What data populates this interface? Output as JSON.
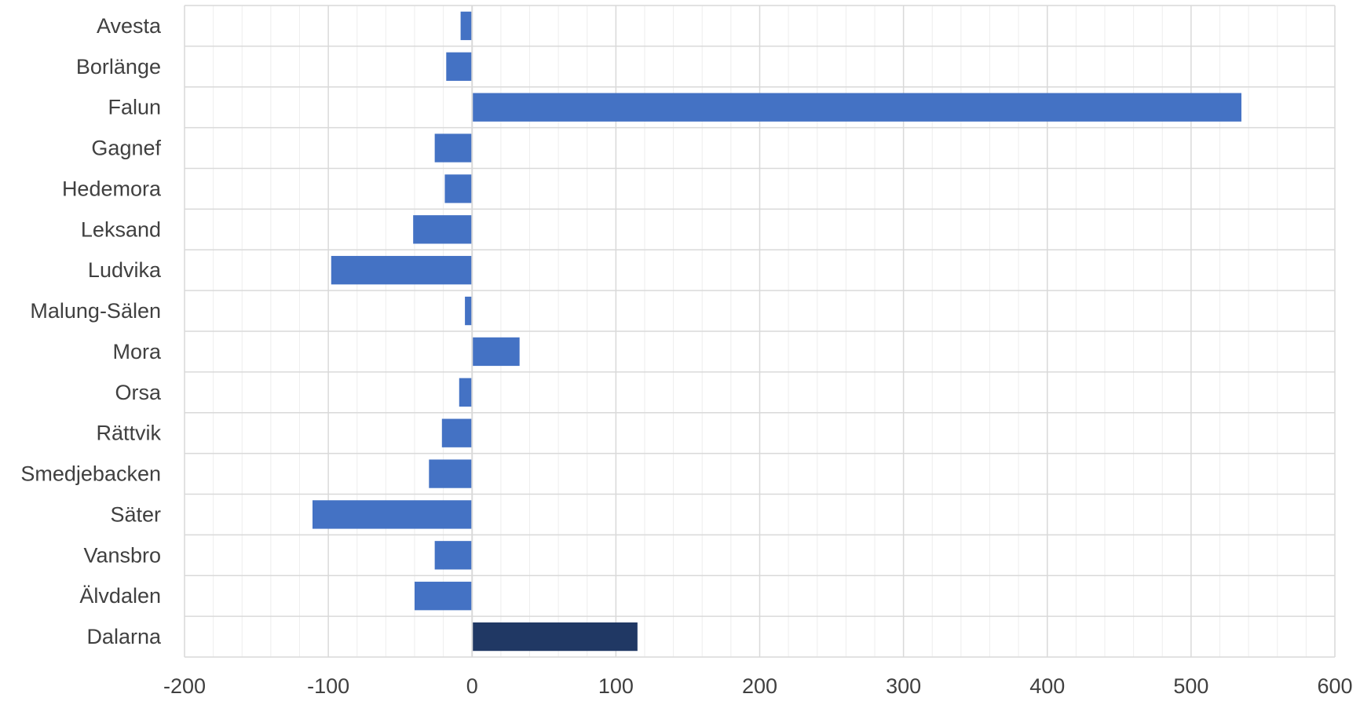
{
  "chart_data": {
    "type": "bar",
    "orientation": "horizontal",
    "categories": [
      "Avesta",
      "Borlänge",
      "Falun",
      "Gagnef",
      "Hedemora",
      "Leksand",
      "Ludvika",
      "Malung-Sälen",
      "Mora",
      "Orsa",
      "Rättvik",
      "Smedjebacken",
      "Säter",
      "Vansbro",
      "Älvdalen",
      "Dalarna"
    ],
    "values": [
      -8,
      -18,
      535,
      -26,
      -19,
      -41,
      -98,
      -5,
      33,
      -9,
      -21,
      -30,
      -111,
      -26,
      -40,
      115
    ],
    "highlight_category": "Dalarna",
    "xlim": [
      -200,
      600
    ],
    "xticks": [
      -200,
      -100,
      0,
      100,
      200,
      300,
      400,
      500,
      600
    ],
    "title": "",
    "xlabel": "",
    "ylabel": "",
    "grid": true,
    "colors": {
      "bar": "#4472C4",
      "highlight_bar": "#203864",
      "major_grid": "#D9D9D9",
      "minor_grid": "#EEEEEE",
      "zero_line": "#D9D9D9",
      "text": "#404040"
    }
  }
}
